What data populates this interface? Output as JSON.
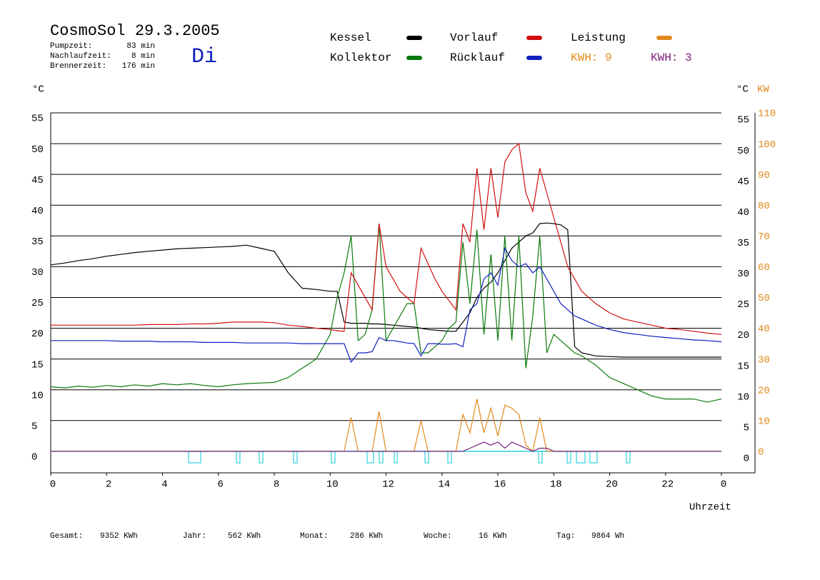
{
  "chart_data": {
    "type": "line",
    "title": "CosmoSol 29.3.2005",
    "day": "Di",
    "info": [
      {
        "label": "Pumpzeit:",
        "value": "83 min"
      },
      {
        "label": "Nachlaufzeit:",
        "value": "8 min"
      },
      {
        "label": "Brennerzeit:",
        "value": "176 min"
      }
    ],
    "y_unit": "°C",
    "y2_unit_left": "°C",
    "y2_unit": "KW",
    "xlabel": "Uhrzeit",
    "kwh_labels": [
      {
        "text": "KWH: 9",
        "color": "#e08a1c"
      },
      {
        "text": "KWH: 3",
        "color": "#7a1f7a"
      }
    ],
    "footer": [
      {
        "label": "Gesamt:",
        "value": "9352 KWh"
      },
      {
        "label": "Jahr:",
        "value": "562 KWh"
      },
      {
        "label": "Monat:",
        "value": "286 KWh"
      },
      {
        "label": "Woche:",
        "value": "16 KWh"
      },
      {
        "label": "Tag:",
        "value": "9864 Wh"
      }
    ],
    "xlim": [
      0,
      25.2
    ],
    "xticks": [
      0,
      2,
      4,
      6,
      8,
      10,
      12,
      14,
      16,
      18,
      20,
      22,
      {
        "value": 24,
        "label": "0"
      }
    ],
    "ylim": [
      -3.5,
      55
    ],
    "yticks": [
      0,
      5,
      10,
      15,
      20,
      25,
      30,
      35,
      40,
      45,
      50,
      55
    ],
    "y2lim": [
      -7,
      110
    ],
    "y2ticks": [
      0,
      10,
      20,
      30,
      40,
      50,
      60,
      70,
      80,
      90,
      100,
      110
    ],
    "grid": true,
    "x": [
      0,
      0.5,
      1,
      1.5,
      2,
      2.5,
      3,
      3.5,
      4,
      4.5,
      5,
      5.5,
      6,
      6.5,
      7,
      7.5,
      8,
      8.5,
      9,
      9.5,
      10,
      10.25,
      10.5,
      10.75,
      11,
      11.25,
      11.5,
      11.75,
      12,
      12.25,
      12.5,
      12.75,
      13,
      13.25,
      13.5,
      13.75,
      14,
      14.25,
      14.5,
      14.75,
      15,
      15.25,
      15.5,
      15.75,
      16,
      16.25,
      16.5,
      16.75,
      17,
      17.25,
      17.5,
      17.75,
      18,
      18.25,
      18.5,
      18.75,
      19,
      19.5,
      20,
      20.5,
      21,
      21.5,
      22,
      22.5,
      23,
      23.5,
      24
    ],
    "series": [
      {
        "name": "Kessel",
        "color": "#000000",
        "values": [
          30.3,
          30.6,
          31,
          31.3,
          31.7,
          32,
          32.3,
          32.5,
          32.7,
          32.9,
          33,
          33.1,
          33.2,
          33.3,
          33.5,
          33,
          32.5,
          29,
          26.5,
          26.3,
          26,
          26,
          21,
          20.8,
          20.8,
          20.8,
          20.7,
          20.7,
          20.6,
          20.5,
          20.4,
          20.3,
          20.2,
          20,
          19.8,
          19.7,
          19.6,
          19.5,
          19.5,
          21,
          22.5,
          25,
          26.5,
          27.5,
          29,
          31,
          33,
          34,
          35,
          35.5,
          37,
          37.1,
          37,
          36.8,
          36,
          17,
          16,
          15.5,
          15.4,
          15.3,
          15.3,
          15.3,
          15.3,
          15.3,
          15.3,
          15.3,
          15.3
        ]
      },
      {
        "name": "Kollektor",
        "color": "#0a7a0a",
        "values": [
          10.5,
          10.3,
          10.6,
          10.4,
          10.7,
          10.5,
          10.8,
          10.6,
          11,
          10.8,
          11,
          10.7,
          10.5,
          10.8,
          11,
          11.1,
          11.2,
          12,
          13.5,
          15,
          19,
          25,
          29,
          35,
          18,
          19,
          23,
          37,
          18,
          20,
          22,
          24,
          24,
          16,
          16,
          17,
          18,
          20,
          21,
          34,
          24,
          36,
          19,
          32,
          18,
          35,
          18,
          35,
          13.5,
          22,
          35,
          16,
          19,
          18,
          17,
          16,
          15.5,
          14,
          12,
          11,
          10,
          9,
          8.5,
          8.5,
          8.5,
          8,
          8.5
        ]
      },
      {
        "name": "Vorlauf",
        "color": "#d01010",
        "values": [
          20.5,
          20.5,
          20.5,
          20.5,
          20.5,
          20.5,
          20.5,
          20.6,
          20.6,
          20.6,
          20.7,
          20.7,
          20.8,
          21,
          21,
          21,
          20.9,
          20.5,
          20.3,
          20,
          19.8,
          19.6,
          19.5,
          29,
          27,
          25,
          23,
          37,
          30,
          28,
          26,
          25,
          24,
          33,
          30.5,
          28,
          26,
          24.5,
          23,
          37,
          34,
          46,
          36,
          46,
          38,
          47,
          49,
          50,
          42,
          39,
          46,
          42,
          38,
          34,
          30,
          28,
          26,
          24,
          22.5,
          21.5,
          21,
          20.5,
          20,
          19.8,
          19.5,
          19.2,
          19
        ]
      },
      {
        "name": "Rücklauf",
        "color": "#1020c0",
        "values": [
          18,
          18,
          18,
          18,
          18,
          17.9,
          17.9,
          17.9,
          17.8,
          17.8,
          17.8,
          17.7,
          17.7,
          17.7,
          17.6,
          17.6,
          17.6,
          17.6,
          17.5,
          17.5,
          17.5,
          17.5,
          17.5,
          14.5,
          16,
          16,
          16.2,
          18.5,
          18,
          18,
          17.8,
          17.6,
          17.5,
          15.5,
          17.5,
          17.5,
          17.4,
          17.4,
          17.5,
          17,
          23,
          24,
          28,
          29,
          27,
          33,
          31,
          30,
          30.5,
          29,
          30,
          28,
          26,
          24,
          23,
          22,
          21.5,
          20.5,
          19.8,
          19.3,
          19,
          18.7,
          18.5,
          18.3,
          18.1,
          18,
          17.8
        ]
      },
      {
        "name": "Leistung",
        "color": "#e08a1c",
        "axis": "y2",
        "values": [
          0,
          0,
          0,
          0,
          0,
          0,
          0,
          0,
          0,
          0,
          0,
          0,
          0,
          0,
          0,
          0,
          0,
          0,
          0,
          0,
          0,
          0,
          0,
          11,
          0,
          0,
          0,
          13,
          0,
          0,
          0,
          0,
          0,
          10,
          0,
          0,
          0,
          0,
          0,
          12,
          6,
          17,
          6,
          14,
          5,
          15,
          14,
          12,
          2,
          0,
          11,
          0,
          0,
          0,
          0,
          0,
          0,
          0,
          0,
          0,
          0,
          0,
          0,
          0,
          0,
          0,
          0
        ]
      },
      {
        "color": "#7a1f7a",
        "axis": "y2",
        "values": [
          0,
          0,
          0,
          0,
          0,
          0,
          0,
          0,
          0,
          0,
          0,
          0,
          0,
          0,
          0,
          0,
          0,
          0,
          0,
          0,
          0,
          0,
          0,
          0,
          0,
          0,
          0,
          0,
          0,
          0,
          0,
          0,
          0,
          0,
          0,
          0,
          0,
          0,
          0,
          0,
          1,
          2,
          3,
          2,
          3,
          1,
          3,
          2,
          1,
          0,
          1,
          1,
          0,
          0,
          0,
          0,
          0,
          0,
          0,
          0,
          0,
          0,
          0,
          0,
          0,
          0,
          0
        ]
      }
    ]
  }
}
